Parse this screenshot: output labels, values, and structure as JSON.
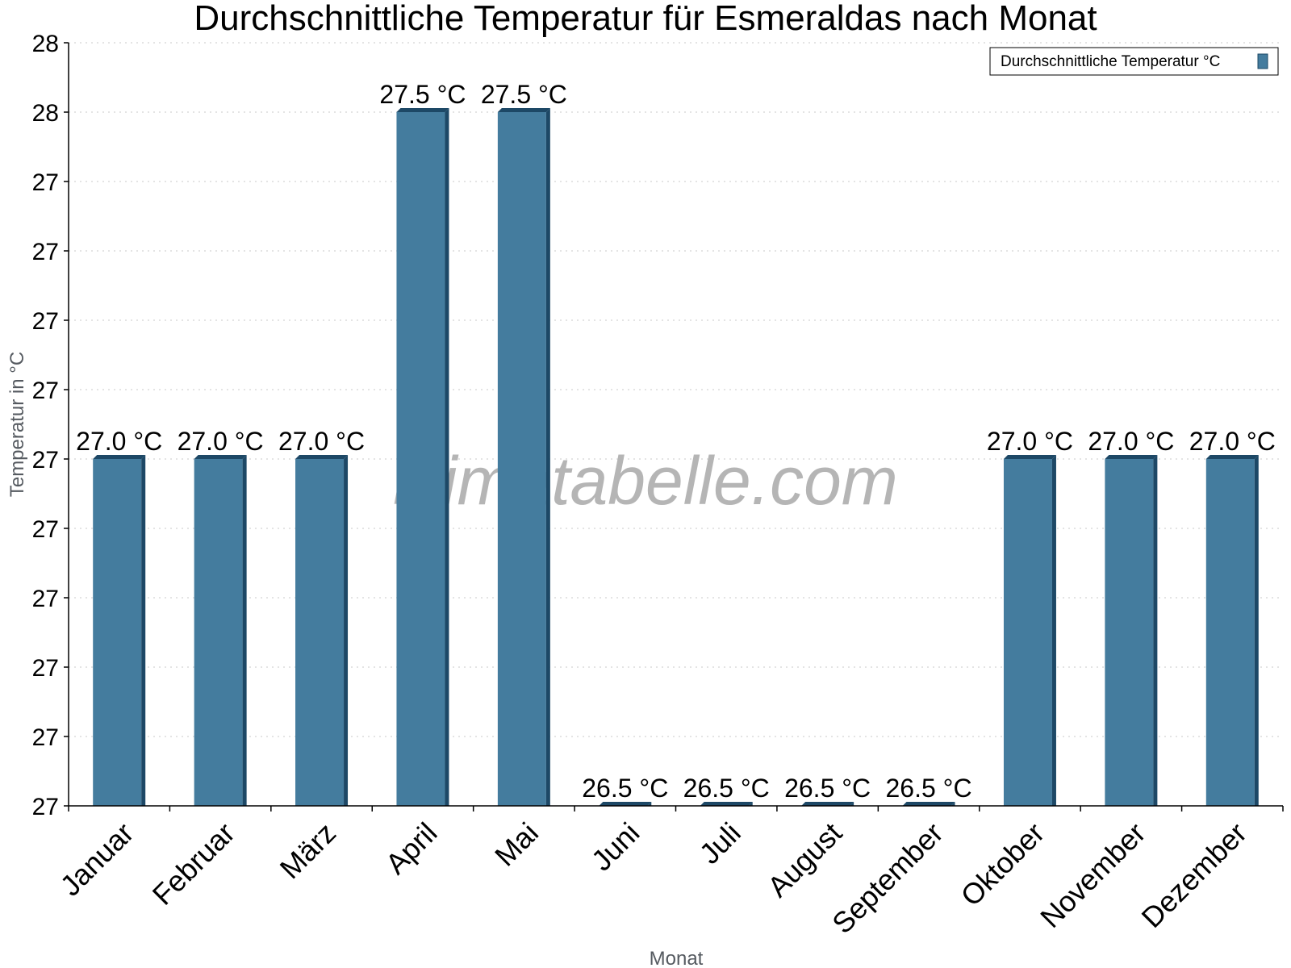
{
  "chart_data": {
    "type": "bar",
    "title": "Durchschnittliche Temperatur für Esmeraldas nach Monat",
    "xlabel": "Monat",
    "ylabel": "Temperatur in °C",
    "categories": [
      "Januar",
      "Februar",
      "März",
      "April",
      "Mai",
      "Juni",
      "Juli",
      "August",
      "September",
      "Oktober",
      "November",
      "Dezember"
    ],
    "series": [
      {
        "name": "Durchschnittliche Temperatur °C",
        "color": "#447c9e",
        "values": [
          27.0,
          27.0,
          27.0,
          27.5,
          27.5,
          26.5,
          26.5,
          26.5,
          26.5,
          27.0,
          27.0,
          27.0
        ],
        "labels": [
          "27.0 °C",
          "27.0 °C",
          "27.0 °C",
          "27.5 °C",
          "27.5 °C",
          "26.5 °C",
          "26.5 °C",
          "26.5 °C",
          "26.5 °C",
          "27.0 °C",
          "27.0 °C",
          "27.0 °C"
        ]
      }
    ],
    "ylim": [
      26.5,
      28.0
    ],
    "yticks": [
      26.5,
      26.6,
      26.7,
      26.8,
      26.9,
      27.0,
      27.1,
      27.2,
      27.3,
      27.4,
      27.5,
      28.0
    ],
    "ytick_labels": [
      "27",
      "27",
      "27",
      "27",
      "27",
      "27",
      "27",
      "27",
      "27",
      "27",
      "28",
      "28"
    ],
    "grid": true,
    "legend_position": "top-right"
  },
  "watermark": "klimatabelle.com"
}
